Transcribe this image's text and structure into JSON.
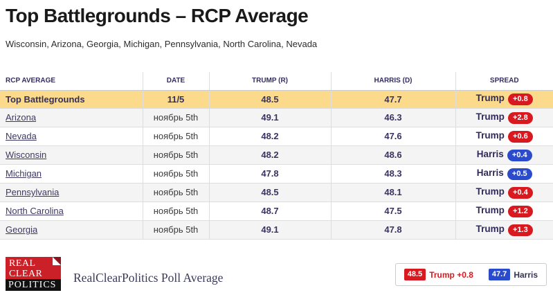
{
  "page": {
    "title": "Top Battlegrounds – RCP Average",
    "subtitle": "Wisconsin, Arizona, Georgia, Michigan, Pennsylvania, North Carolina, Nevada"
  },
  "table": {
    "columns": [
      "RCP Average",
      "Date",
      "Trump (R)",
      "Harris (D)",
      "Spread"
    ],
    "summary_row": {
      "label": "Top Battlegrounds",
      "date": "11/5",
      "trump": "48.5",
      "harris": "47.7",
      "spread_name": "Trump",
      "spread_value": "+0.8",
      "spread_party": "rep"
    },
    "rows": [
      {
        "state": "Arizona",
        "date": "ноябрь 5th",
        "trump": "49.1",
        "harris": "46.3",
        "spread_name": "Trump",
        "spread_value": "+2.8",
        "spread_party": "rep"
      },
      {
        "state": "Nevada",
        "date": "ноябрь 5th",
        "trump": "48.2",
        "harris": "47.6",
        "spread_name": "Trump",
        "spread_value": "+0.6",
        "spread_party": "rep"
      },
      {
        "state": "Wisconsin",
        "date": "ноябрь 5th",
        "trump": "48.2",
        "harris": "48.6",
        "spread_name": "Harris",
        "spread_value": "+0.4",
        "spread_party": "dem"
      },
      {
        "state": "Michigan",
        "date": "ноябрь 5th",
        "trump": "47.8",
        "harris": "48.3",
        "spread_name": "Harris",
        "spread_value": "+0.5",
        "spread_party": "dem"
      },
      {
        "state": "Pennsylvania",
        "date": "ноябрь 5th",
        "trump": "48.5",
        "harris": "48.1",
        "spread_name": "Trump",
        "spread_value": "+0.4",
        "spread_party": "rep"
      },
      {
        "state": "North Carolina",
        "date": "ноябрь 5th",
        "trump": "48.7",
        "harris": "47.5",
        "spread_name": "Trump",
        "spread_value": "+1.2",
        "spread_party": "rep"
      },
      {
        "state": "Georgia",
        "date": "ноябрь 5th",
        "trump": "49.1",
        "harris": "47.8",
        "spread_name": "Trump",
        "spread_value": "+1.3",
        "spread_party": "rep"
      }
    ]
  },
  "footer": {
    "logo": {
      "line1": "REAL",
      "line2": "CLEAR",
      "line3": "POLITICS"
    },
    "caption": "RealClearPolitics Poll Average",
    "legend": {
      "trump_value": "48.5",
      "trump_label": "Trump +0.8",
      "trump_party": "rep",
      "harris_value": "47.7",
      "harris_label": "Harris",
      "harris_party": "dem"
    }
  },
  "colors": {
    "rep_red": "#d8191f",
    "dem_blue": "#2a4bcc",
    "highlight_yellow": "#fbdb8b",
    "navy": "#332e5e",
    "logo_red": "#cb2027"
  }
}
